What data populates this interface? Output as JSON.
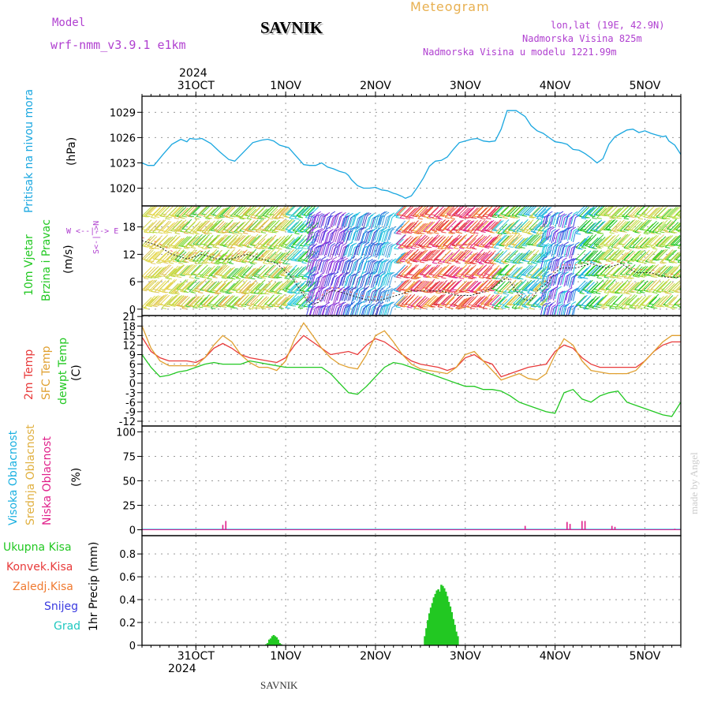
{
  "header": {
    "model_label": "Model",
    "model_name": "wrf-nmm_v3.9.1 e1km",
    "station": "SAVNIK",
    "meteogram": "Meteogram",
    "lonlat": "lon,lat (19E, 42.9N)",
    "altitude": "Nadmorska Visina 825m",
    "model_altitude": "Nadmorska Visina u modelu 1221.99m"
  },
  "footer": {
    "station": "SAVNIK",
    "credit": "made by Angel"
  },
  "colors": {
    "pressure": "#1aa7e0",
    "temp2m": "#e83a3a",
    "sfc": "#e0a030",
    "dewpt": "#22c822",
    "high_cloud": "#1ab0e0",
    "mid_cloud": "#e0b040",
    "low_cloud": "#e0208a",
    "precip_total": "#22c822",
    "precip_conv": "#e83a3a",
    "precip_frozen": "#f07a30",
    "snow": "#3a3ae0",
    "hail": "#20c8c0",
    "purple": "#b040d0",
    "meteogram": "#e8b050"
  },
  "chart_data": [
    {
      "type": "line",
      "name": "pressure",
      "axis_labels": [
        "Pritisak na nivou mora",
        "(hPa)"
      ],
      "ylim": [
        1017.9,
        1030.9
      ],
      "yticks": [
        1020,
        1023,
        1026,
        1029
      ],
      "x": [
        0,
        4,
        8,
        14,
        20,
        26,
        30,
        32,
        36,
        40,
        46,
        52,
        58,
        62,
        68,
        74,
        80,
        84,
        88,
        92,
        98,
        104,
        108,
        112,
        116,
        120,
        124,
        128,
        132,
        136,
        138,
        140,
        144,
        148,
        152,
        156,
        160,
        164,
        168,
        170,
        174,
        176,
        180,
        184,
        188,
        192,
        196,
        200,
        204,
        208,
        212,
        216,
        220,
        224,
        228,
        232,
        236,
        240,
        244,
        250,
        256,
        260,
        264,
        268,
        272,
        276,
        280,
        284,
        288,
        292,
        296,
        300,
        304,
        308,
        312,
        316,
        320,
        324,
        328,
        332,
        336,
        340,
        344,
        348,
        350,
        352,
        356,
        360
      ],
      "values": [
        1023.0,
        1022.7,
        1022.7,
        1024.0,
        1025.2,
        1025.8,
        1025.5,
        1025.9,
        1025.8,
        1025.9,
        1025.3,
        1024.3,
        1023.4,
        1023.2,
        1024.3,
        1025.4,
        1025.7,
        1025.8,
        1025.6,
        1025.1,
        1024.8,
        1023.6,
        1022.8,
        1022.7,
        1022.7,
        1023.0,
        1022.5,
        1022.3,
        1022.0,
        1021.8,
        1021.5,
        1021.0,
        1020.3,
        1020.0,
        1020.0,
        1020.1,
        1019.8,
        1019.7,
        1019.4,
        1019.3,
        1019.0,
        1018.8,
        1019.1,
        1020.1,
        1021.2,
        1022.6,
        1023.2,
        1023.3,
        1023.7,
        1024.6,
        1025.4,
        1025.6,
        1025.8,
        1025.9,
        1025.6,
        1025.5,
        1025.6,
        1027.0,
        1029.2,
        1029.2,
        1028.5,
        1027.4,
        1026.8,
        1026.5,
        1026.0,
        1025.5,
        1025.4,
        1025.2,
        1024.6,
        1024.5,
        1024.1,
        1023.6,
        1023.0,
        1023.5,
        1025.2,
        1026.1,
        1026.5,
        1026.9,
        1027.0,
        1026.6,
        1026.8,
        1026.5,
        1026.3,
        1026.1,
        1026.2,
        1025.6,
        1025.1,
        1024.0
      ]
    },
    {
      "type": "line",
      "name": "wind",
      "axis_labels": [
        "10m Vjetar",
        "Brzina i Pravac",
        "(m/s)"
      ],
      "ylim": [
        -1.4,
        22.6
      ],
      "yticks": [
        0,
        6,
        12,
        18
      ],
      "compass": "W <--|--> E",
      "compass_v": "S<-|->N",
      "x": [
        0,
        10,
        20,
        30,
        40,
        50,
        60,
        70,
        80,
        90,
        100,
        106,
        110,
        114,
        118,
        122,
        126,
        130,
        140,
        150,
        160,
        170,
        180,
        190,
        200,
        210,
        220,
        230,
        236,
        240,
        244,
        248,
        252,
        256,
        260,
        264,
        268,
        272,
        276,
        280,
        290,
        300,
        310,
        320,
        330,
        340,
        350,
        360
      ],
      "values": [
        15,
        14,
        12,
        11,
        12,
        11,
        11,
        12,
        11,
        10,
        7,
        4,
        2,
        1,
        1.5,
        3,
        4,
        4,
        3,
        2,
        2,
        3,
        4,
        4,
        4,
        3,
        3,
        4,
        5,
        6,
        7,
        5,
        3,
        2,
        2,
        4,
        5,
        6,
        8,
        9,
        9,
        10,
        9,
        10,
        8,
        8,
        7,
        7
      ]
    },
    {
      "type": "line",
      "name": "temperature",
      "axis_labels": [
        "2m Temp",
        "SFC Temp",
        "dewpt Temp",
        "(C)"
      ],
      "ylim": [
        -13.5,
        21.3
      ],
      "yticks": [
        -12,
        -9,
        -6,
        -3,
        0,
        3,
        6,
        9,
        12,
        15,
        18,
        21
      ],
      "x": [
        0,
        6,
        12,
        18,
        24,
        30,
        36,
        42,
        48,
        54,
        60,
        66,
        72,
        78,
        84,
        90,
        96,
        102,
        108,
        114,
        120,
        126,
        132,
        138,
        144,
        150,
        156,
        162,
        168,
        174,
        180,
        186,
        192,
        198,
        204,
        210,
        216,
        222,
        228,
        234,
        240,
        246,
        252,
        258,
        264,
        270,
        276,
        282,
        288,
        294,
        300,
        306,
        312,
        318,
        324,
        330,
        336,
        342,
        348,
        354,
        360
      ],
      "series": [
        {
          "name": "2m Temp",
          "values": [
            14.5,
            10,
            8,
            7,
            7,
            7,
            6.5,
            8,
            11,
            12.5,
            11,
            9,
            8,
            7.5,
            7,
            6.5,
            8,
            12,
            15,
            13,
            11,
            9,
            9.5,
            10,
            9,
            12,
            14,
            13,
            11,
            9,
            7,
            6,
            5.5,
            5,
            4,
            5,
            8,
            9,
            7,
            6,
            2,
            3,
            4,
            5,
            5.5,
            6,
            10,
            12,
            11,
            8,
            6,
            5,
            5,
            5,
            5,
            5,
            7,
            10,
            12,
            13,
            13
          ]
        },
        {
          "name": "SFC Temp",
          "values": [
            18,
            11,
            7,
            5.5,
            5.5,
            5.5,
            5.5,
            8,
            12,
            15,
            13,
            9,
            6.5,
            5,
            5,
            4,
            7,
            14,
            19,
            15,
            11,
            8,
            6,
            5,
            4.5,
            9,
            15,
            16.5,
            13,
            9,
            6,
            4.5,
            4,
            3.5,
            3,
            5,
            9,
            10,
            7,
            4,
            1,
            2,
            3,
            1.5,
            1,
            3,
            9,
            14,
            12,
            7,
            4,
            3.5,
            3,
            3,
            3,
            4,
            7,
            10,
            13,
            15,
            15
          ]
        },
        {
          "name": "dewpt Temp",
          "values": [
            9,
            5,
            2,
            2.5,
            3.5,
            4,
            5,
            6,
            6.5,
            6,
            6,
            6,
            7,
            6.5,
            6,
            5.5,
            5,
            5,
            5,
            5,
            5,
            3,
            0,
            -3,
            -3.5,
            -1,
            2,
            5,
            6.5,
            6,
            5,
            4,
            3,
            2,
            1,
            0,
            -1,
            -1,
            -2,
            -2,
            -2.5,
            -4,
            -6,
            -7,
            -8,
            -9,
            -9.5,
            -3,
            -2,
            -5,
            -6,
            -4,
            -3,
            -2.5,
            -6,
            -7,
            -8,
            -9,
            -10,
            -10.5,
            -6
          ]
        }
      ]
    },
    {
      "type": "bar",
      "name": "cloud",
      "axis_labels": [
        "Visoka Oblacnost",
        "Srednja Oblacnost",
        "Niska Oblacnost",
        "(%)"
      ],
      "ylim": [
        -6,
        106
      ],
      "yticks": [
        0,
        25,
        50,
        75,
        100
      ],
      "bars": [
        {
          "x": 54,
          "value": 5
        },
        {
          "x": 56,
          "value": 9
        },
        {
          "x": 256,
          "value": 4
        },
        {
          "x": 284,
          "value": 8
        },
        {
          "x": 286,
          "value": 6
        },
        {
          "x": 294,
          "value": 9
        },
        {
          "x": 296,
          "value": 9
        },
        {
          "x": 314,
          "value": 4
        },
        {
          "x": 316,
          "value": 3
        },
        {
          "x": 356,
          "value": 1
        }
      ]
    },
    {
      "type": "bar",
      "name": "precip",
      "axis_labels": [
        "Ukupna Kisa",
        "Konvek.Kisa",
        "Zaledj.Kisa",
        "Snijeg",
        "Grad",
        "1hr Precip (mm)"
      ],
      "ylim": [
        0,
        0.96
      ],
      "yticks": [
        0,
        0.2,
        0.4,
        0.6,
        0.8
      ],
      "x": [
        83,
        84,
        85,
        86,
        87,
        88,
        89,
        90,
        91,
        92,
        93,
        94,
        95,
        96,
        97,
        98,
        99,
        100,
        101,
        102,
        103,
        104,
        105,
        106,
        107,
        108,
        109,
        110,
        111,
        112,
        113,
        114,
        115,
        116,
        117,
        118
      ],
      "values": [
        0.01,
        0.02,
        0.05,
        0.06,
        0.08,
        0.09,
        0.08,
        0.07,
        0.05,
        0.02,
        0.01,
        0,
        0,
        0,
        0,
        0,
        0,
        0,
        0,
        0,
        0,
        0,
        0,
        0,
        0,
        0,
        0,
        0,
        0,
        0,
        0,
        0,
        0,
        0,
        0,
        0
      ]
    }
  ],
  "precip_main": {
    "x": [
      189,
      190,
      191,
      192,
      193,
      194,
      195,
      196,
      197,
      198,
      199,
      200,
      201,
      202,
      203,
      204,
      205,
      206,
      207,
      208,
      209,
      210,
      211,
      212,
      213
    ],
    "values": [
      0.08,
      0.15,
      0.22,
      0.28,
      0.33,
      0.37,
      0.42,
      0.45,
      0.48,
      0.49,
      0.47,
      0.53,
      0.52,
      0.5,
      0.47,
      0.43,
      0.38,
      0.34,
      0.29,
      0.23,
      0.18,
      0.12,
      0.08,
      0,
      0
    ]
  },
  "time_axis": {
    "year": "2024",
    "day_labels": [
      "31OCT",
      "1NOV",
      "2NOV",
      "3NOV",
      "4NOV",
      "5NOV"
    ],
    "day_offsets": [
      36,
      96,
      156,
      216,
      276,
      336
    ]
  }
}
